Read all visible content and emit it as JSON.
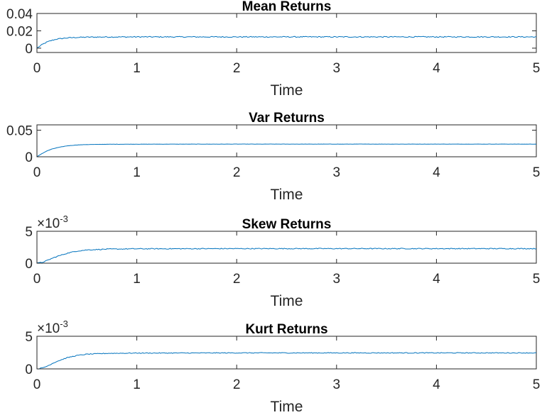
{
  "chart_data": [
    {
      "type": "line",
      "title": "Mean Returns",
      "xlabel": "Time",
      "ylabel": "",
      "xlim": [
        0,
        5
      ],
      "ylim": [
        -0.005,
        0.04
      ],
      "xticks": [
        "0",
        "1",
        "2",
        "3",
        "4",
        "5"
      ],
      "yticks": [
        "0",
        "0.02",
        "0.04"
      ],
      "ytick_values": [
        0,
        0.02,
        0.04
      ],
      "exponent_label": "",
      "series": [
        {
          "x": [
            0,
            0.05,
            0.1,
            0.15,
            0.2,
            0.3,
            0.4,
            0.5,
            0.7,
            1,
            2,
            3,
            4,
            5
          ],
          "values": [
            0,
            0.004,
            0.007,
            0.009,
            0.0105,
            0.0118,
            0.0124,
            0.0127,
            0.0129,
            0.013,
            0.013,
            0.013,
            0.013,
            0.013
          ],
          "noise": 0.0006
        }
      ]
    },
    {
      "type": "line",
      "title": "Var Returns",
      "xlabel": "Time",
      "ylabel": "",
      "xlim": [
        0,
        5
      ],
      "ylim": [
        0,
        0.06
      ],
      "xticks": [
        "0",
        "1",
        "2",
        "3",
        "4",
        "5"
      ],
      "yticks": [
        "0",
        "0.05"
      ],
      "ytick_values": [
        0,
        0.05
      ],
      "exponent_label": "",
      "series": [
        {
          "x": [
            0,
            0.05,
            0.1,
            0.15,
            0.2,
            0.3,
            0.4,
            0.5,
            0.7,
            1,
            2,
            3,
            4,
            5
          ],
          "values": [
            0,
            0.006,
            0.011,
            0.0145,
            0.017,
            0.0205,
            0.0222,
            0.023,
            0.0235,
            0.0237,
            0.0238,
            0.0238,
            0.0238,
            0.0238
          ],
          "noise": 0.0002
        }
      ]
    },
    {
      "type": "line",
      "title": "Skew Returns",
      "xlabel": "Time",
      "ylabel": "",
      "xlim": [
        0,
        5
      ],
      "ylim": [
        0,
        5
      ],
      "xticks": [
        "0",
        "1",
        "2",
        "3",
        "4",
        "5"
      ],
      "yticks": [
        "0",
        "5"
      ],
      "ytick_values": [
        0,
        5
      ],
      "exponent_label": "×10",
      "exponent_power": "-3",
      "series": [
        {
          "x": [
            0,
            0.05,
            0.1,
            0.15,
            0.2,
            0.3,
            0.4,
            0.5,
            0.7,
            1,
            2,
            3,
            4,
            5
          ],
          "values": [
            0,
            0.12,
            0.4,
            0.75,
            1.05,
            1.55,
            1.9,
            2.08,
            2.2,
            2.25,
            2.28,
            2.28,
            2.28,
            2.28
          ],
          "noise": 0.07
        }
      ]
    },
    {
      "type": "line",
      "title": "Kurt Returns",
      "xlabel": "Time",
      "ylabel": "",
      "xlim": [
        0,
        5
      ],
      "ylim": [
        0,
        5
      ],
      "xticks": [
        "0",
        "1",
        "2",
        "3",
        "4",
        "5"
      ],
      "yticks": [
        "0",
        "5"
      ],
      "ytick_values": [
        0,
        5
      ],
      "exponent_label": "×10",
      "exponent_power": "-3",
      "series": [
        {
          "x": [
            0,
            0.05,
            0.1,
            0.15,
            0.2,
            0.3,
            0.4,
            0.5,
            0.7,
            1,
            2,
            3,
            4,
            5
          ],
          "values": [
            0,
            0.12,
            0.4,
            0.8,
            1.15,
            1.7,
            2.05,
            2.25,
            2.38,
            2.42,
            2.45,
            2.45,
            2.45,
            2.45
          ],
          "noise": 0.06
        }
      ]
    }
  ],
  "colors": {
    "series": "#0072BD",
    "axes": "#262626"
  }
}
